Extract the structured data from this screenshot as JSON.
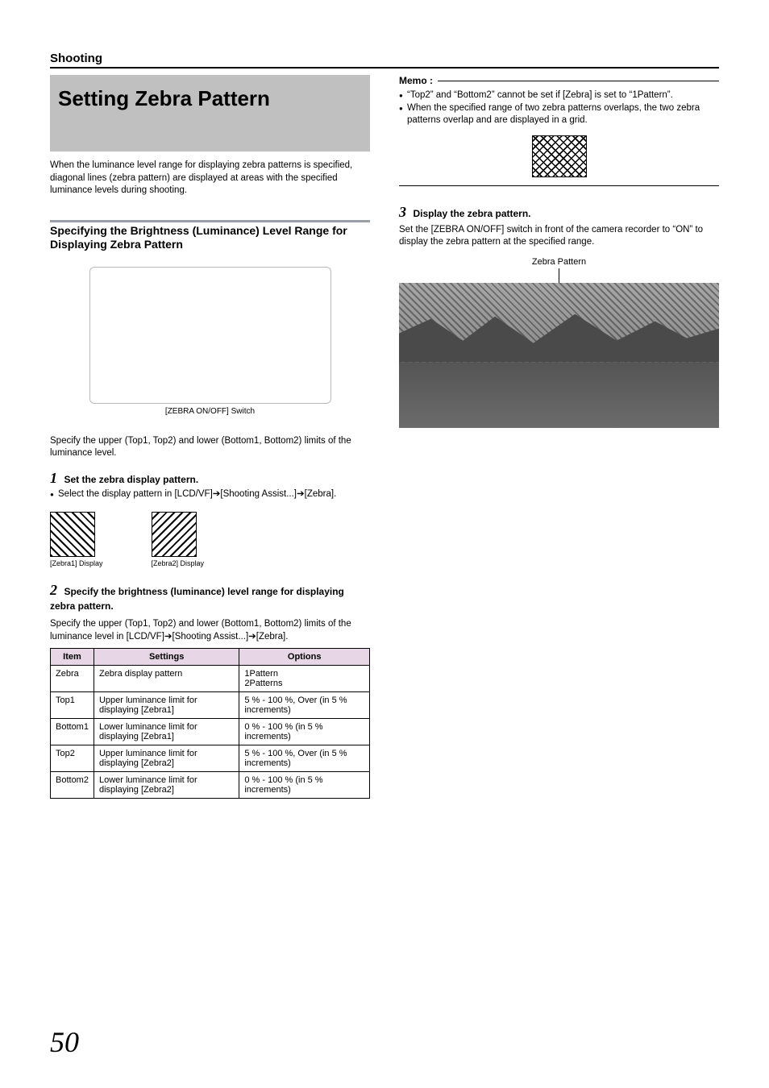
{
  "section_label": "Shooting",
  "title": "Setting Zebra Pattern",
  "intro": "When the luminance level range for displaying zebra patterns is specified, diagonal lines (zebra pattern) are displayed at areas with the specified luminance levels during shooting.",
  "subhead": "Specifying the Brightness (Luminance) Level Range for Displaying Zebra Pattern",
  "camera_caption": "[ZEBRA ON/OFF] Switch",
  "limits_intro": "Specify the upper (Top1, Top2) and lower (Bottom1, Bottom2) limits of the luminance level.",
  "step1": {
    "num": "1",
    "title": "Set the zebra display pattern.",
    "bullet": "Select the display pattern in [LCD/VF]➔[Shooting Assist...]➔[Zebra]."
  },
  "swatch1_label": "[Zebra1] Display",
  "swatch2_label": "[Zebra2] Display",
  "step2": {
    "num": "2",
    "title": "Specify the brightness (luminance) level range for displaying zebra pattern.",
    "body": "Specify the upper (Top1, Top2) and lower (Bottom1, Bottom2) limits of the luminance level in [LCD/VF]➔[Shooting Assist...]➔[Zebra]."
  },
  "table": {
    "header_bg": "#e6d6e6",
    "columns": [
      "Item",
      "Settings",
      "Options"
    ],
    "rows": [
      [
        "Zebra",
        "Zebra display pattern",
        "1Pattern\n2Patterns"
      ],
      [
        "Top1",
        "Upper luminance limit for displaying [Zebra1]",
        "5 % - 100 %, Over (in 5 % increments)"
      ],
      [
        "Bottom1",
        "Lower luminance limit for displaying [Zebra1]",
        "0 % - 100 % (in 5 % increments)"
      ],
      [
        "Top2",
        "Upper luminance limit for displaying [Zebra2]",
        "5 % - 100 %, Over (in 5 % increments)"
      ],
      [
        "Bottom2",
        "Lower luminance limit for displaying [Zebra2]",
        "0 % - 100 % (in 5 % increments)"
      ]
    ]
  },
  "memo": {
    "label": "Memo :",
    "items": [
      "“Top2” and “Bottom2” cannot be set if [Zebra] is set to “1Pattern”.",
      "When the specified range of two zebra patterns overlaps, the two zebra patterns overlap and are displayed in a grid."
    ]
  },
  "step3": {
    "num": "3",
    "title": "Display the zebra pattern.",
    "body": "Set the [ZEBRA ON/OFF] switch in front of the camera recorder to “ON” to display the zebra pattern at the specified range."
  },
  "zp_label": "Zebra Pattern",
  "page_number": "50",
  "colors": {
    "title_bg": "#c0c0c0",
    "subhead_bar": "#9aa0a6",
    "text": "#000000",
    "background": "#ffffff"
  }
}
